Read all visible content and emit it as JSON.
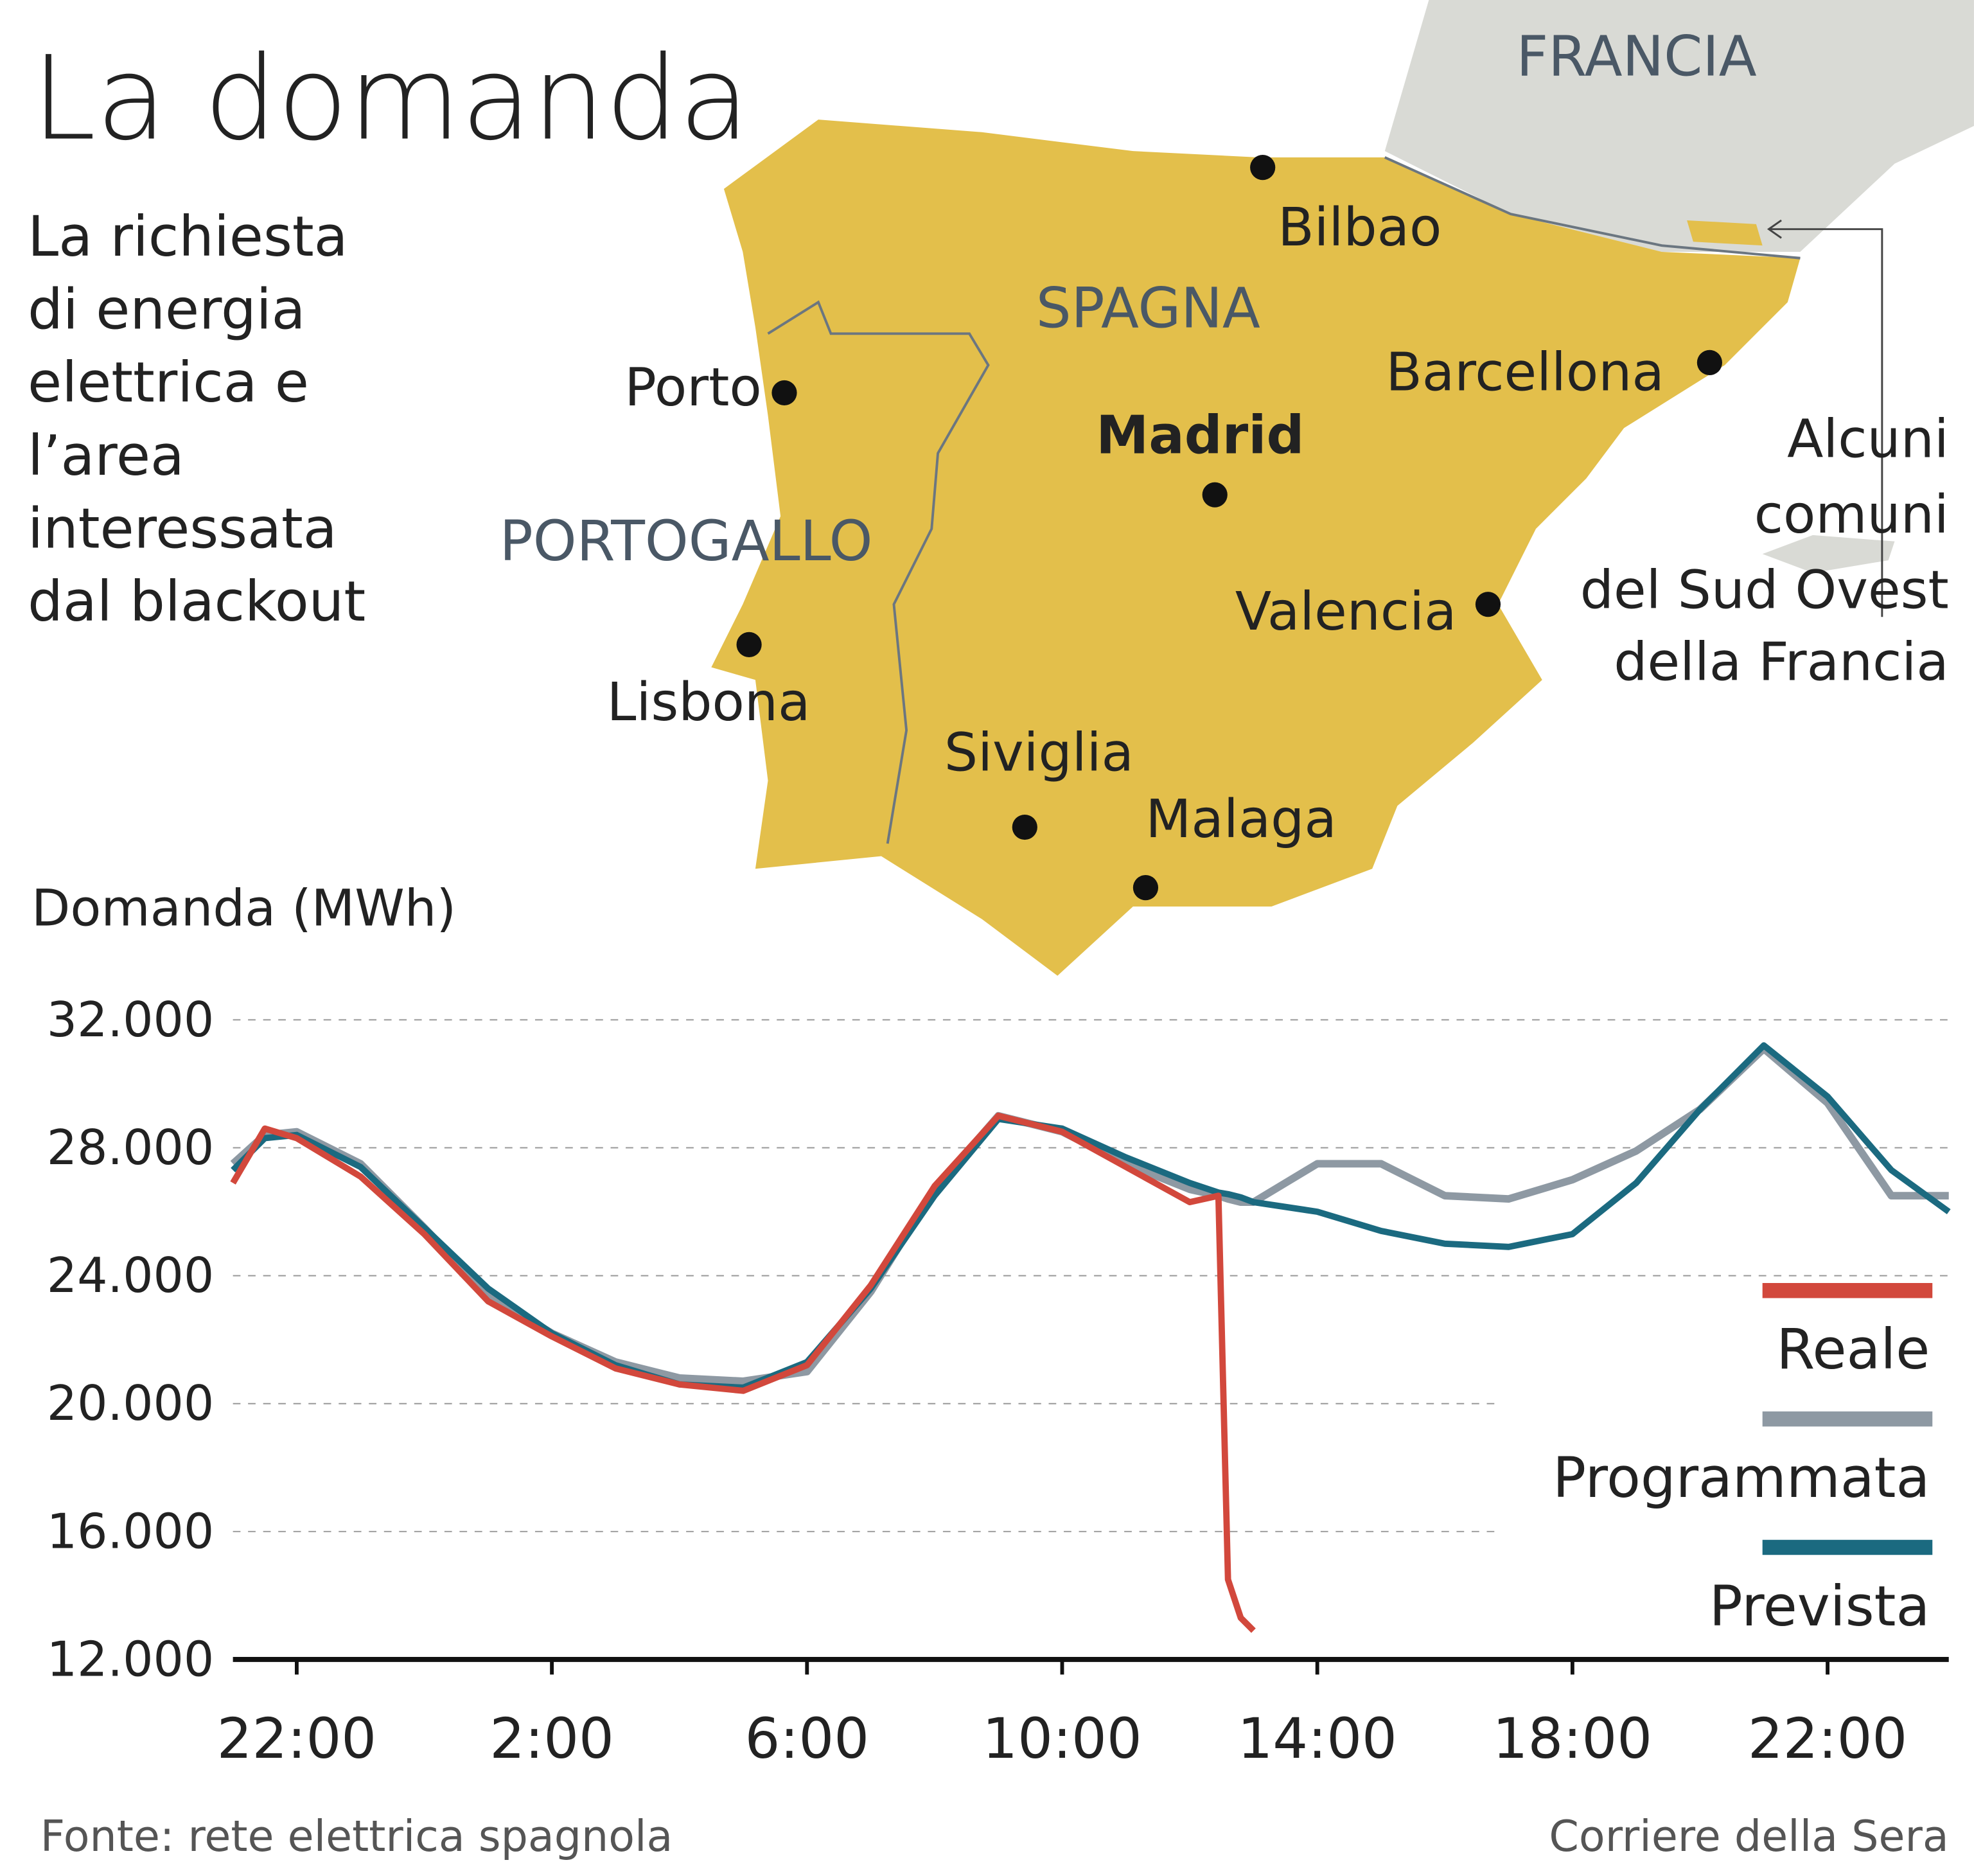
{
  "chart_data": {
    "type": "line",
    "title": "La domanda",
    "subtitle": "La richiesta di energia elettrica e l’area interessata dal blackout",
    "y_label": "Domanda (MWh)",
    "x": [
      21,
      21.5,
      22,
      23,
      24,
      25,
      26,
      27,
      28,
      29,
      30,
      31,
      32,
      33,
      34,
      35,
      36,
      36.45,
      36.6,
      36.8,
      37,
      38,
      39,
      40,
      41,
      42,
      43,
      44,
      45,
      46,
      47,
      47.9
    ],
    "xlim": [
      21,
      47.9
    ],
    "xticks": [
      {
        "value": 22,
        "label": "22:00"
      },
      {
        "value": 26,
        "label": "2:00"
      },
      {
        "value": 30,
        "label": "6:00"
      },
      {
        "value": 34,
        "label": "10:00"
      },
      {
        "value": 38,
        "label": "14:00"
      },
      {
        "value": 42,
        "label": "18:00"
      },
      {
        "value": 46,
        "label": "22:00"
      }
    ],
    "ylim": [
      12000,
      32000
    ],
    "yticks": [
      {
        "value": 12000,
        "label": "12.000"
      },
      {
        "value": 16000,
        "label": "16.000"
      },
      {
        "value": 20000,
        "label": "20.000"
      },
      {
        "value": 24000,
        "label": "24.000"
      },
      {
        "value": 28000,
        "label": "28.000"
      },
      {
        "value": 32000,
        "label": "32.000"
      }
    ],
    "grid": true,
    "series": [
      {
        "name": "Programmata",
        "color": "#8e99a3",
        "values": [
          27500,
          28400,
          28500,
          27500,
          25500,
          23400,
          22200,
          21300,
          20800,
          20700,
          21000,
          23500,
          26700,
          29000,
          28500,
          27500,
          26700,
          26500,
          26400,
          26300,
          26300,
          27500,
          27500,
          26500,
          26400,
          27000,
          27900,
          29200,
          31100,
          29400,
          26500,
          26500
        ]
      },
      {
        "name": "Prevista",
        "color": "#1b6a80",
        "values": [
          27300,
          28300,
          28400,
          27400,
          25500,
          23600,
          22200,
          21200,
          20600,
          20500,
          21300,
          23600,
          26500,
          28900,
          28600,
          27700,
          26900,
          26600,
          26550,
          26450,
          26300,
          26000,
          25400,
          25000,
          24900,
          25300,
          26900,
          29200,
          31200,
          29600,
          27300,
          26000
        ]
      },
      {
        "name": "Reale",
        "color": "#d2483c",
        "values": [
          26900,
          28600,
          28300,
          27100,
          25300,
          23200,
          22100,
          21100,
          20600,
          20400,
          21200,
          23700,
          26800,
          29000,
          28500,
          27400,
          26300,
          26500,
          14500,
          13300,
          12900,
          null,
          null,
          null,
          null,
          null,
          null,
          null,
          null,
          null,
          null,
          null
        ]
      }
    ],
    "legend_order": [
      "Reale",
      "Programmata",
      "Prevista"
    ]
  },
  "map": {
    "countries": [
      "FRANCIA",
      "SPAGNA",
      "PORTOGALLO"
    ],
    "capital": "Madrid",
    "cities": [
      "Bilbao",
      "Barcellona",
      "Porto",
      "Valencia",
      "Lisbona",
      "Siviglia",
      "Malaga"
    ],
    "note": [
      "Alcuni",
      "comuni",
      "del Sud Ovest",
      "della Francia"
    ]
  },
  "footer": {
    "source": "Fonte: rete elettrica spagnola",
    "credit": "Corriere della Sera"
  }
}
